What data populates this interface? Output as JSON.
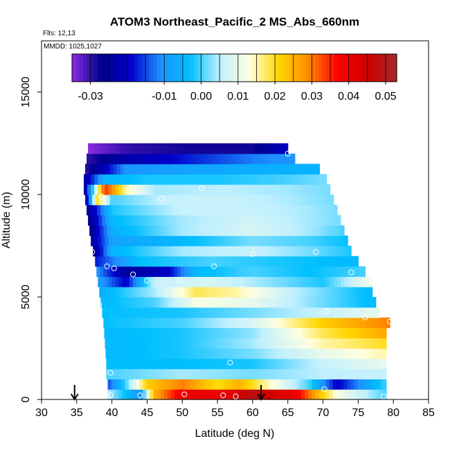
{
  "chart_data": {
    "type": "heatmap",
    "title": "ATOM3 Northeast_Pacific_2 MS_Abs_660nm",
    "flights_label": "Flts: 12,13",
    "mmdd_label": "MMDD: 1025,1027",
    "xlabel": "Latitude (deg N)",
    "ylabel": "Altitude (m)",
    "xlim": [
      30,
      85
    ],
    "ylim": [
      0,
      17500
    ],
    "x_ticks": [
      30,
      35,
      40,
      45,
      50,
      55,
      60,
      65,
      70,
      75,
      80,
      85
    ],
    "y_ticks": [
      0,
      5000,
      10000,
      15000
    ],
    "colorbar": {
      "range": [
        -0.035,
        0.053
      ],
      "ticks": [
        -0.03,
        -0.01,
        0.0,
        0.01,
        0.02,
        0.03,
        0.04,
        0.05
      ],
      "tick_labels": [
        "-0.03",
        "-0.01",
        "0.00",
        "0.01",
        "0.02",
        "0.03",
        "0.04",
        "0.05"
      ],
      "colors": [
        "#8a2be2",
        "#00008b",
        "#0000cd",
        "#1e90ff",
        "#00bfff",
        "#bfefff",
        "#ffffe0",
        "#ffd700",
        "#ff8c00",
        "#ff0000",
        "#cd0000",
        "#a52a2a"
      ]
    },
    "altitude_bins_m": [
      0,
      500,
      1000,
      1500,
      2000,
      2500,
      3000,
      3500,
      4000,
      4500,
      5000,
      5500,
      6000,
      6500,
      7000,
      7500,
      8000,
      8500,
      9000,
      9500,
      10000,
      10500,
      11000,
      11500,
      12000
    ],
    "rows": [
      {
        "alt": 0,
        "lat_min": 39.4,
        "lat_max": 79.0,
        "profile": [
          [
            39.4,
            0.005
          ],
          [
            44,
            -0.01
          ],
          [
            46,
            0.025
          ],
          [
            50,
            0.04
          ],
          [
            56,
            0.04
          ],
          [
            60,
            0.048
          ],
          [
            66,
            0.04
          ],
          [
            72,
            0.012
          ],
          [
            79,
            0.0
          ]
        ]
      },
      {
        "alt": 500,
        "lat_min": 39.4,
        "lat_max": 79.0,
        "profile": [
          [
            39.4,
            -0.015
          ],
          [
            42,
            0.0
          ],
          [
            45,
            0.022
          ],
          [
            50,
            0.03
          ],
          [
            55,
            0.02
          ],
          [
            58,
            0.025
          ],
          [
            62,
            0.015
          ],
          [
            68,
            0.0
          ],
          [
            72,
            -0.02
          ],
          [
            79,
            0.0
          ]
        ]
      },
      {
        "alt": 1000,
        "lat_min": 39.2,
        "lat_max": 79.0,
        "profile": [
          [
            39.2,
            0.0
          ],
          [
            50,
            0.004
          ],
          [
            60,
            0.002
          ],
          [
            70,
            0.005
          ],
          [
            79,
            0.006
          ]
        ]
      },
      {
        "alt": 1500,
        "lat_min": 39.2,
        "lat_max": 79.0,
        "profile": [
          [
            39.2,
            -0.003
          ],
          [
            50,
            -0.003
          ],
          [
            60,
            -0.002
          ],
          [
            70,
            0.006
          ],
          [
            79,
            0.01
          ]
        ]
      },
      {
        "alt": 2000,
        "lat_min": 39.1,
        "lat_max": 79.0,
        "profile": [
          [
            39.1,
            -0.004
          ],
          [
            50,
            -0.002
          ],
          [
            60,
            0.002
          ],
          [
            70,
            0.01
          ],
          [
            79,
            0.015
          ]
        ]
      },
      {
        "alt": 2500,
        "lat_min": 39.0,
        "lat_max": 79.0,
        "profile": [
          [
            39.0,
            -0.004
          ],
          [
            50,
            -0.002
          ],
          [
            60,
            0.004
          ],
          [
            70,
            0.015
          ],
          [
            79,
            0.02
          ]
        ]
      },
      {
        "alt": 3000,
        "lat_min": 38.9,
        "lat_max": 79.0,
        "profile": [
          [
            38.9,
            -0.004
          ],
          [
            50,
            -0.002
          ],
          [
            60,
            0.003
          ],
          [
            70,
            0.018
          ],
          [
            79,
            0.026
          ]
        ]
      },
      {
        "alt": 3500,
        "lat_min": 38.8,
        "lat_max": 79.5,
        "profile": [
          [
            38.8,
            -0.003
          ],
          [
            50,
            0.0
          ],
          [
            60,
            0.008
          ],
          [
            70,
            0.022
          ],
          [
            79.5,
            0.03
          ]
        ]
      },
      {
        "alt": 4000,
        "lat_min": 38.6,
        "lat_max": 78.0,
        "profile": [
          [
            38.6,
            -0.003
          ],
          [
            50,
            -0.002
          ],
          [
            60,
            0.002
          ],
          [
            70,
            0.006
          ],
          [
            78,
            0.01
          ]
        ]
      },
      {
        "alt": 4500,
        "lat_min": 38.4,
        "lat_max": 77.5,
        "profile": [
          [
            38.4,
            -0.004
          ],
          [
            46,
            0.0
          ],
          [
            52,
            0.012
          ],
          [
            60,
            0.01
          ],
          [
            68,
            0.003
          ],
          [
            77.5,
            -0.004
          ]
        ]
      },
      {
        "alt": 5000,
        "lat_min": 38.2,
        "lat_max": 77.0,
        "profile": [
          [
            38.2,
            -0.006
          ],
          [
            46,
            0.004
          ],
          [
            52,
            0.018
          ],
          [
            58,
            0.015
          ],
          [
            66,
            0.005
          ],
          [
            77,
            -0.004
          ]
        ]
      },
      {
        "alt": 5500,
        "lat_min": 38.0,
        "lat_max": 77.0,
        "profile": [
          [
            38.0,
            -0.008
          ],
          [
            42,
            -0.02
          ],
          [
            46,
            0.006
          ],
          [
            54,
            0.008
          ],
          [
            62,
            0.003
          ],
          [
            70,
            -0.002
          ],
          [
            77,
            0.012
          ]
        ]
      },
      {
        "alt": 6000,
        "lat_min": 37.8,
        "lat_max": 76.0,
        "profile": [
          [
            37.8,
            -0.01
          ],
          [
            42,
            -0.025
          ],
          [
            48,
            -0.02
          ],
          [
            52,
            -0.004
          ],
          [
            60,
            0.0
          ],
          [
            68,
            -0.003
          ],
          [
            76,
            0.0
          ]
        ]
      },
      {
        "alt": 6500,
        "lat_min": 37.6,
        "lat_max": 75.0,
        "profile": [
          [
            37.6,
            -0.018
          ],
          [
            44,
            -0.003
          ],
          [
            54,
            0.0
          ],
          [
            64,
            -0.002
          ],
          [
            75,
            -0.004
          ]
        ]
      },
      {
        "alt": 7000,
        "lat_min": 37.3,
        "lat_max": 74.0,
        "profile": [
          [
            37.3,
            -0.028
          ],
          [
            40,
            -0.005
          ],
          [
            50,
            0.004
          ],
          [
            60,
            0.006
          ],
          [
            68,
            0.002
          ],
          [
            74,
            -0.002
          ]
        ]
      },
      {
        "alt": 7500,
        "lat_min": 37.0,
        "lat_max": 73.5,
        "profile": [
          [
            37.0,
            -0.025
          ],
          [
            40,
            -0.008
          ],
          [
            50,
            -0.004
          ],
          [
            60,
            0.002
          ],
          [
            68,
            0.0
          ],
          [
            73.5,
            -0.003
          ]
        ]
      },
      {
        "alt": 8000,
        "lat_min": 36.8,
        "lat_max": 73.0,
        "profile": [
          [
            36.8,
            -0.028
          ],
          [
            40,
            -0.006
          ],
          [
            50,
            0.004
          ],
          [
            60,
            0.008
          ],
          [
            68,
            0.004
          ],
          [
            73,
            0.0
          ]
        ]
      },
      {
        "alt": 8500,
        "lat_min": 36.6,
        "lat_max": 72.5,
        "profile": [
          [
            36.6,
            -0.028
          ],
          [
            40,
            -0.004
          ],
          [
            50,
            0.004
          ],
          [
            60,
            0.007
          ],
          [
            68,
            0.004
          ],
          [
            72.5,
            0.002
          ]
        ]
      },
      {
        "alt": 9000,
        "lat_min": 36.4,
        "lat_max": 72.0,
        "profile": [
          [
            36.4,
            -0.028
          ],
          [
            40,
            -0.002
          ],
          [
            50,
            0.006
          ],
          [
            60,
            0.006
          ],
          [
            68,
            0.004
          ],
          [
            72,
            0.002
          ]
        ]
      },
      {
        "alt": 9500,
        "lat_min": 36.2,
        "lat_max": 71.5,
        "profile": [
          [
            36.2,
            -0.025
          ],
          [
            38,
            0.02
          ],
          [
            40,
            0.0
          ],
          [
            48,
            0.006
          ],
          [
            58,
            0.006
          ],
          [
            66,
            0.004
          ],
          [
            71.5,
            0.002
          ]
        ]
      },
      {
        "alt": 10000,
        "lat_min": 36.0,
        "lat_max": 71.0,
        "profile": [
          [
            36.0,
            -0.028
          ],
          [
            39,
            0.035
          ],
          [
            42,
            0.015
          ],
          [
            46,
            0.004
          ],
          [
            56,
            0.005
          ],
          [
            64,
            0.004
          ],
          [
            71,
            0.002
          ]
        ]
      },
      {
        "alt": 10500,
        "lat_min": 36.0,
        "lat_max": 70.5,
        "profile": [
          [
            36.0,
            -0.025
          ],
          [
            39,
            -0.005
          ],
          [
            45,
            -0.002
          ],
          [
            55,
            -0.002
          ],
          [
            65,
            0.0
          ],
          [
            70.5,
            0.002
          ]
        ]
      },
      {
        "alt": 11000,
        "lat_min": 36.2,
        "lat_max": 69.5,
        "profile": [
          [
            36.2,
            -0.03
          ],
          [
            42,
            -0.01
          ],
          [
            50,
            -0.008
          ],
          [
            60,
            -0.006
          ],
          [
            69.5,
            -0.005
          ]
        ]
      },
      {
        "alt": 11500,
        "lat_min": 36.4,
        "lat_max": 66.0,
        "profile": [
          [
            36.4,
            -0.03
          ],
          [
            40,
            -0.025
          ],
          [
            50,
            -0.018
          ],
          [
            60,
            -0.012
          ],
          [
            66,
            -0.01
          ]
        ]
      },
      {
        "alt": 12000,
        "lat_min": 36.6,
        "lat_max": 65.0,
        "profile": [
          [
            36.6,
            -0.035
          ],
          [
            42,
            -0.03
          ],
          [
            50,
            -0.028
          ],
          [
            60,
            -0.028
          ],
          [
            65,
            -0.02
          ]
        ]
      }
    ],
    "sample_points": [
      {
        "lat": 36.2,
        "alt": 12400
      },
      {
        "lat": 65.0,
        "alt": 12000
      },
      {
        "lat": 38.5,
        "alt": 9900
      },
      {
        "lat": 47.0,
        "alt": 9800
      },
      {
        "lat": 52.8,
        "alt": 10300
      },
      {
        "lat": 72.0,
        "alt": 10300
      },
      {
        "lat": 37.2,
        "alt": 7200
      },
      {
        "lat": 60.0,
        "alt": 7100
      },
      {
        "lat": 69.0,
        "alt": 7200
      },
      {
        "lat": 39.3,
        "alt": 6500
      },
      {
        "lat": 40.3,
        "alt": 6400
      },
      {
        "lat": 54.5,
        "alt": 6500
      },
      {
        "lat": 74.0,
        "alt": 6200
      },
      {
        "lat": 43.0,
        "alt": 6100
      },
      {
        "lat": 45.0,
        "alt": 5800
      },
      {
        "lat": 49.7,
        "alt": 5800
      },
      {
        "lat": 58.5,
        "alt": 5400
      },
      {
        "lat": 38.2,
        "alt": 4600
      },
      {
        "lat": 70.5,
        "alt": 4300
      },
      {
        "lat": 76.0,
        "alt": 4000
      },
      {
        "lat": 79.5,
        "alt": 3800
      },
      {
        "lat": 56.8,
        "alt": 1800
      },
      {
        "lat": 39.8,
        "alt": 1300
      },
      {
        "lat": 70.2,
        "alt": 500
      },
      {
        "lat": 39.8,
        "alt": 200
      },
      {
        "lat": 44.0,
        "alt": 200
      },
      {
        "lat": 50.3,
        "alt": 250
      },
      {
        "lat": 55.8,
        "alt": 200
      },
      {
        "lat": 57.6,
        "alt": 150
      },
      {
        "lat": 78.6,
        "alt": 150
      }
    ],
    "arrows": [
      {
        "lat": 34.7
      },
      {
        "lat": 61.2
      }
    ]
  }
}
